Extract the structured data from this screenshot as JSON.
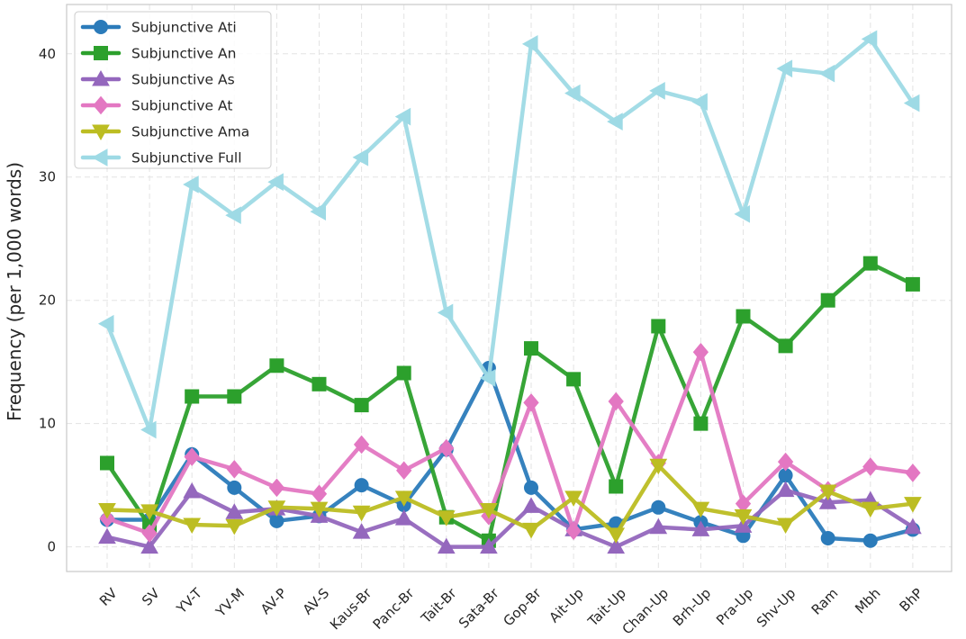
{
  "chart_data": {
    "type": "line",
    "title": "",
    "xlabel": "",
    "ylabel": "Frequency (per 1,000 words)",
    "ylim": [
      -2,
      44
    ],
    "yticks": [
      0,
      10,
      20,
      30,
      40
    ],
    "grid": true,
    "legend_position": "top-left",
    "categories": [
      "RV",
      "SV",
      "YV-T",
      "YV-M",
      "AV-P",
      "AV-S",
      "Kaus-Br",
      "Panc-Br",
      "Tait-Br",
      "Sata-Br",
      "Gop-Br",
      "Ait-Up",
      "Tait-Up",
      "Chan-Up",
      "Brh-Up",
      "Pra-Up",
      "Shv-Up",
      "Ram",
      "Mbh",
      "BhP"
    ],
    "series": [
      {
        "name": "Subjunctive Ati",
        "color": "#2b7bba",
        "marker": "circle",
        "values": [
          2.2,
          2.2,
          7.5,
          4.8,
          2.1,
          2.5,
          5.0,
          3.4,
          7.9,
          14.5,
          4.8,
          1.4,
          1.9,
          3.2,
          2.0,
          0.9,
          5.8,
          0.7,
          0.5,
          1.4
        ]
      },
      {
        "name": "Subjunctive An",
        "color": "#2ca02c",
        "marker": "square",
        "values": [
          6.8,
          1.7,
          12.2,
          12.2,
          14.7,
          13.2,
          11.5,
          14.1,
          2.4,
          0.5,
          16.1,
          13.6,
          4.9,
          17.9,
          10.0,
          18.7,
          16.3,
          20.0,
          23.0,
          21.3
        ]
      },
      {
        "name": "Subjunctive As",
        "color": "#9467bd",
        "marker": "triangle-up",
        "values": [
          0.8,
          0.0,
          4.5,
          2.8,
          3.1,
          2.5,
          1.2,
          2.3,
          0.0,
          0.0,
          3.3,
          1.4,
          0.0,
          1.6,
          1.4,
          1.7,
          4.6,
          3.6,
          3.8,
          1.6
        ]
      },
      {
        "name": "Subjunctive At",
        "color": "#e377c2",
        "marker": "diamond",
        "values": [
          2.3,
          1.1,
          7.3,
          6.3,
          4.8,
          4.3,
          8.3,
          6.2,
          8.0,
          2.5,
          11.7,
          1.3,
          11.8,
          6.8,
          15.8,
          3.5,
          6.9,
          4.6,
          6.5,
          6.0
        ]
      },
      {
        "name": "Subjunctive Ama",
        "color": "#bcbd22",
        "marker": "triangle-down",
        "values": [
          3.0,
          2.9,
          1.8,
          1.7,
          3.2,
          3.1,
          2.8,
          4.0,
          2.4,
          3.0,
          1.4,
          4.0,
          1.0,
          6.6,
          3.1,
          2.5,
          1.8,
          4.5,
          3.1,
          3.5
        ]
      },
      {
        "name": "Subjunctive Full",
        "color": "#9edae5",
        "marker": "triangle-left",
        "values": [
          18.1,
          9.5,
          29.4,
          26.9,
          29.6,
          27.2,
          31.6,
          34.9,
          19.0,
          13.7,
          40.8,
          36.8,
          34.5,
          37.0,
          36.1,
          27.0,
          38.8,
          38.4,
          41.2,
          36.0
        ]
      }
    ]
  }
}
